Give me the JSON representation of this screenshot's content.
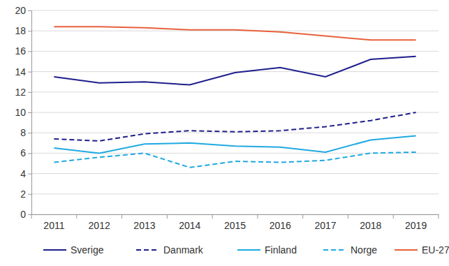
{
  "chart_data": {
    "type": "line",
    "categories": [
      "2011",
      "2012",
      "2013",
      "2014",
      "2015",
      "2016",
      "2017",
      "2018",
      "2019"
    ],
    "series": [
      {
        "name": "Sverige",
        "color": "#1e1e8c",
        "line_style": "solid",
        "values": [
          13.5,
          12.9,
          13.0,
          12.7,
          13.9,
          14.4,
          13.5,
          15.2,
          15.5
        ]
      },
      {
        "name": "Danmark",
        "color": "#1e1e8c",
        "line_style": "dashed",
        "values": [
          7.4,
          7.2,
          7.9,
          8.2,
          8.1,
          8.2,
          8.6,
          9.2,
          10.0
        ]
      },
      {
        "name": "Finland",
        "color": "#1fa9e1",
        "line_style": "solid",
        "values": [
          6.5,
          6.0,
          6.9,
          7.0,
          6.7,
          6.6,
          6.1,
          7.3,
          7.7
        ]
      },
      {
        "name": "Norge",
        "color": "#1fa9e1",
        "line_style": "dashed",
        "values": [
          5.1,
          5.6,
          6.0,
          4.6,
          5.2,
          5.1,
          5.3,
          6.0,
          6.1
        ]
      },
      {
        "name": "EU-27",
        "color": "#e8603c",
        "line_style": "solid",
        "values": [
          18.4,
          18.4,
          18.3,
          18.1,
          18.1,
          17.9,
          17.5,
          17.1,
          17.1
        ]
      }
    ],
    "ylim": [
      0,
      20
    ],
    "yticks": [
      0,
      2,
      4,
      6,
      8,
      10,
      12,
      14,
      16,
      18,
      20
    ],
    "grid": true,
    "legend": "bottom"
  }
}
